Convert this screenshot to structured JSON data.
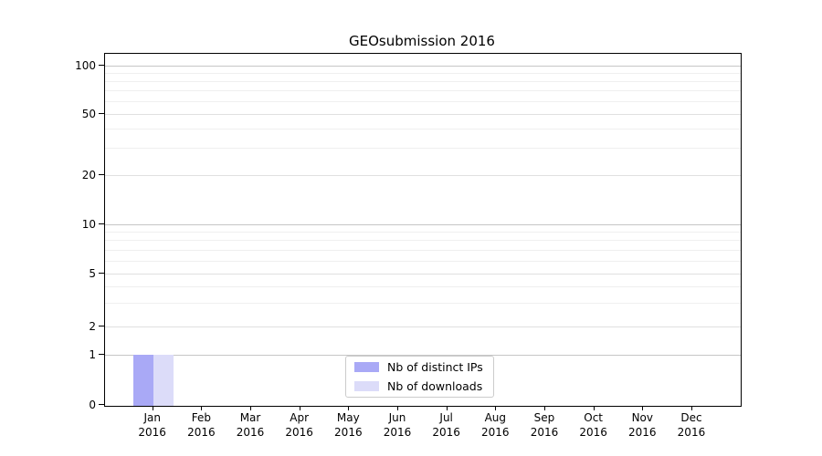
{
  "chart_data": {
    "type": "bar",
    "title": "GEOsubmission 2016",
    "categories": [
      "Jan 2016",
      "Feb 2016",
      "Mar 2016",
      "Apr 2016",
      "May 2016",
      "Jun 2016",
      "Jul 2016",
      "Aug 2016",
      "Sep 2016",
      "Oct 2016",
      "Nov 2016",
      "Dec 2016"
    ],
    "months": [
      "Jan",
      "Feb",
      "Mar",
      "Apr",
      "May",
      "Jun",
      "Jul",
      "Aug",
      "Sep",
      "Oct",
      "Nov",
      "Dec"
    ],
    "year": "2016",
    "series": [
      {
        "name": "Nb of distinct IPs",
        "color": "#a9a9f6",
        "values": [
          1,
          0,
          0,
          0,
          0,
          0,
          0,
          0,
          0,
          0,
          0,
          0
        ]
      },
      {
        "name": "Nb of downloads",
        "color": "#dcdcf9",
        "values": [
          1,
          0,
          0,
          0,
          0,
          0,
          0,
          0,
          0,
          0,
          0,
          0
        ]
      }
    ],
    "yscale": "symlog",
    "ytick_values": [
      0,
      1,
      2,
      5,
      10,
      20,
      50,
      100
    ],
    "ytick_labels": [
      "0",
      "1",
      "2",
      "5",
      "10",
      "20",
      "50",
      "100"
    ],
    "minor_grid_values": [
      3,
      4,
      6,
      7,
      8,
      9,
      30,
      40,
      60,
      70,
      80,
      90
    ],
    "ylim": [
      0,
      110
    ],
    "grid": "horizontal",
    "legend_position": "lower-center",
    "colors": {
      "major_grid": "#c6c6c6",
      "mid_grid": "#e0e0e0",
      "minor_grid": "#efefef",
      "axis": "#000000",
      "legend_border": "#cccccc"
    }
  }
}
